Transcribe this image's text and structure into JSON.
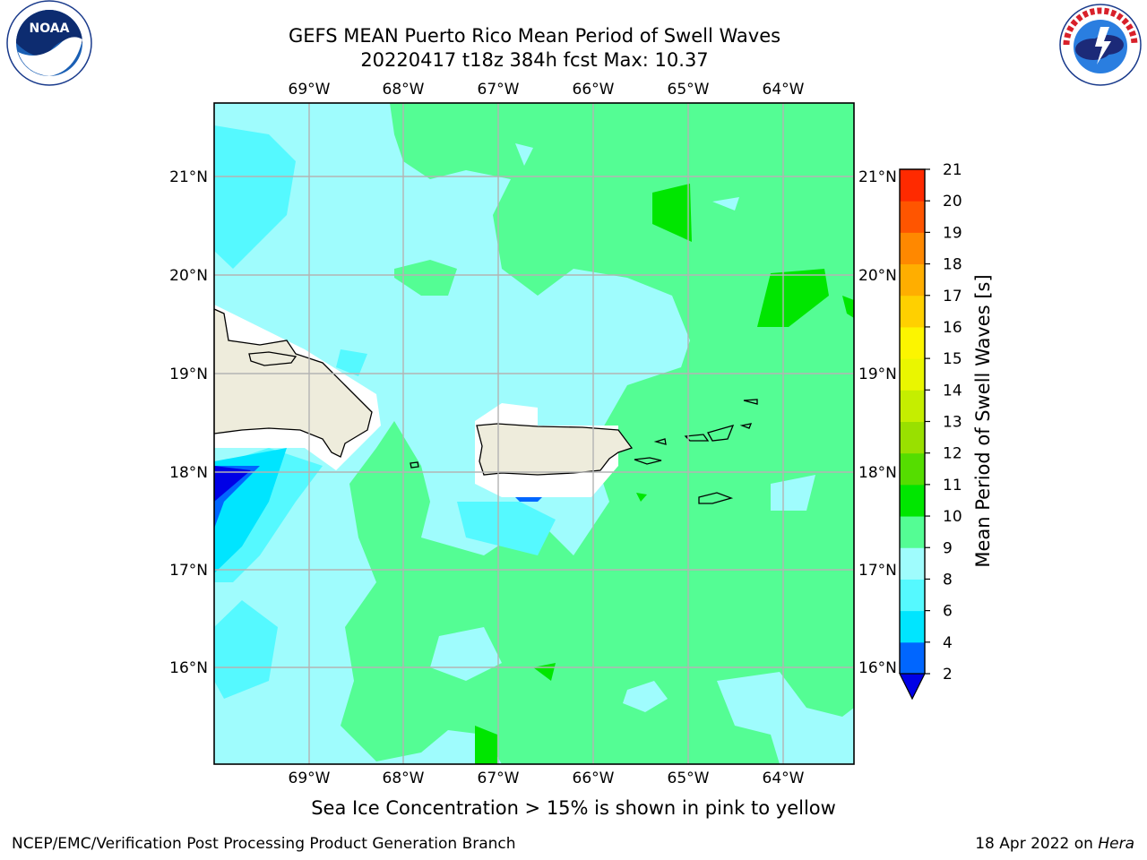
{
  "title": {
    "line1": "GEFS MEAN Puerto Rico Mean Period of Swell Waves",
    "line2": "20220417 t18z 384h fcst   Max: 10.37"
  },
  "logos": {
    "left": {
      "name": "noaa-logo",
      "text": "NOAA",
      "ring_text": "NATIONAL OCEANIC AND ATMOSPHERIC ADMINISTRATION · U.S. DEPARTMENT OF COMMERCE"
    },
    "right": {
      "name": "nws-logo",
      "ring_text": "NATIONAL WEATHER SERVICE"
    }
  },
  "map": {
    "lon_labels": [
      "69°W",
      "68°W",
      "67°W",
      "66°W",
      "65°W",
      "64°W"
    ],
    "lat_labels": [
      "21°N",
      "20°N",
      "19°N",
      "18°N",
      "17°N",
      "16°N"
    ],
    "colors": {
      "ocean_low": "#9ffcfd",
      "ocean_mid": "#54fd94",
      "land": "#eeecdc",
      "coast": "#000000",
      "grid": "#b3b3b3"
    }
  },
  "colorbar": {
    "title": "Mean Period of Swell Waves [s]",
    "ticks": [
      "2",
      "4",
      "6",
      "8",
      "9",
      "10",
      "11",
      "12",
      "13",
      "14",
      "15",
      "16",
      "17",
      "18",
      "19",
      "20",
      "21"
    ],
    "colors": [
      "#0000e6",
      "#0066ff",
      "#00e5ff",
      "#55f9ff",
      "#9ffcfd",
      "#54fd94",
      "#00e600",
      "#55dd00",
      "#99e000",
      "#c5ee00",
      "#eaf600",
      "#fcf500",
      "#ffd000",
      "#ffae00",
      "#ff8800",
      "#ff5500",
      "#ff2a00",
      "#ff0000"
    ]
  },
  "caption": "Sea Ice Concentration > 15% is shown in pink to yellow",
  "footer": {
    "left": "NCEP/EMC/Verification Post Processing Product Generation Branch",
    "date": "18 Apr 2022 on ",
    "machine": "Hera"
  }
}
